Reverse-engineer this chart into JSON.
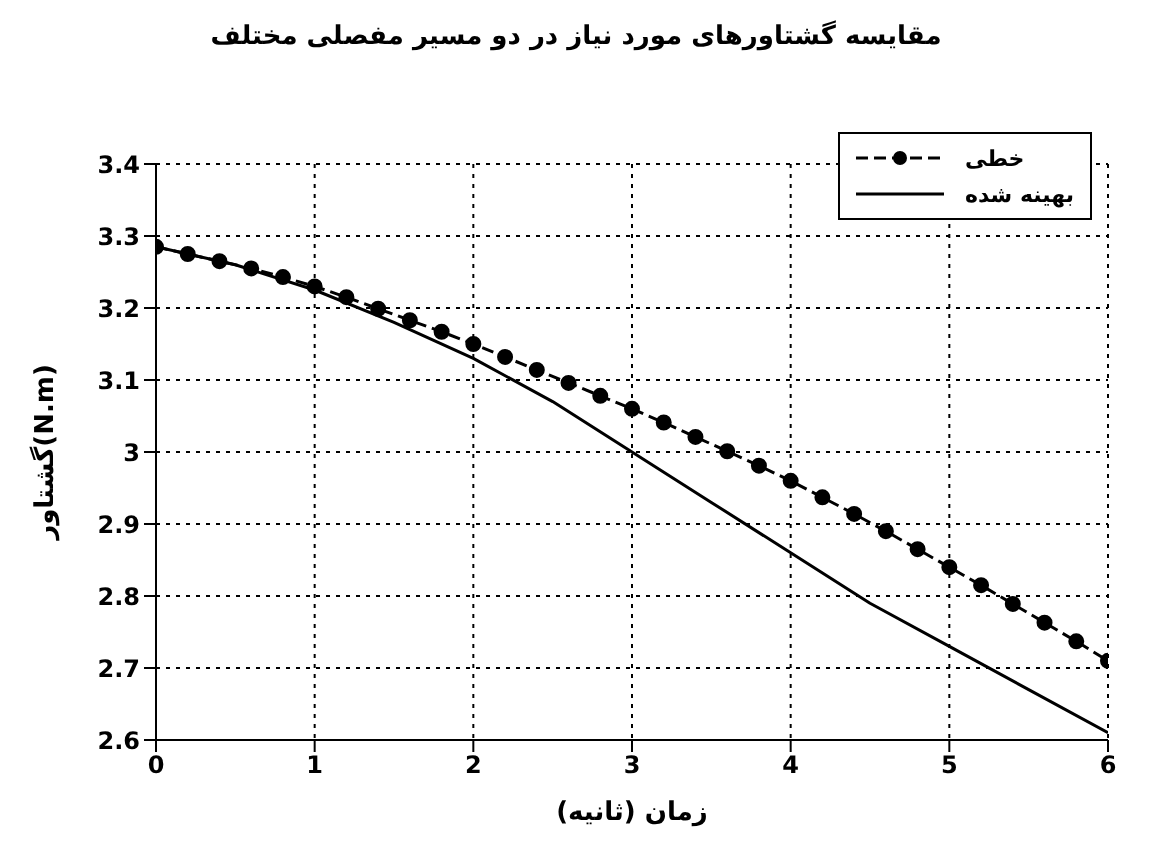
{
  "chart_data": {
    "type": "line",
    "title": "مقایسه گشتاورهای مورد نیاز در دو مسیر مفصلی مختلف",
    "xlabel": "زمان (ثانیه)",
    "ylabel": "گشتاور(N.m)",
    "xlim": [
      0,
      6
    ],
    "xticks": [
      0,
      1,
      2,
      3,
      4,
      5,
      6
    ],
    "ylim": [
      2.6,
      3.4
    ],
    "yticks": [
      2.6,
      2.7,
      2.8,
      2.9,
      3,
      3.1,
      3.2,
      3.3,
      3.4
    ],
    "grid": true,
    "legend": "top right",
    "series": [
      {
        "name": "خطی",
        "color": "#000000",
        "marker": "circle",
        "line_style": "dashed",
        "x": [
          0,
          0.2,
          0.4,
          0.6,
          0.8,
          1,
          1.2,
          1.4,
          1.6,
          1.8,
          2,
          2.2,
          2.4,
          2.6,
          2.8,
          3,
          3.2,
          3.4,
          3.6,
          3.8,
          4,
          4.2,
          4.4,
          4.6,
          4.8,
          5,
          5.2,
          5.4,
          5.6,
          5.8,
          6
        ],
        "values": [
          3.285,
          3.275,
          3.265,
          3.255,
          3.243,
          3.23,
          3.215,
          3.199,
          3.183,
          3.167,
          3.15,
          3.132,
          3.114,
          3.096,
          3.078,
          3.06,
          3.041,
          3.021,
          3.001,
          2.981,
          2.96,
          2.937,
          2.914,
          2.89,
          2.865,
          2.84,
          2.815,
          2.789,
          2.763,
          2.737,
          2.71
        ]
      },
      {
        "name": "بهینه شده",
        "color": "#000000",
        "marker": "none",
        "line_style": "solid",
        "x": [
          0,
          0.5,
          1,
          1.5,
          2,
          2.5,
          3,
          3.5,
          4,
          4.5,
          5,
          5.5,
          6
        ],
        "values": [
          3.285,
          3.26,
          3.225,
          3.18,
          3.13,
          3.07,
          3.0,
          2.93,
          2.86,
          2.79,
          2.73,
          2.67,
          2.61
        ]
      }
    ]
  }
}
